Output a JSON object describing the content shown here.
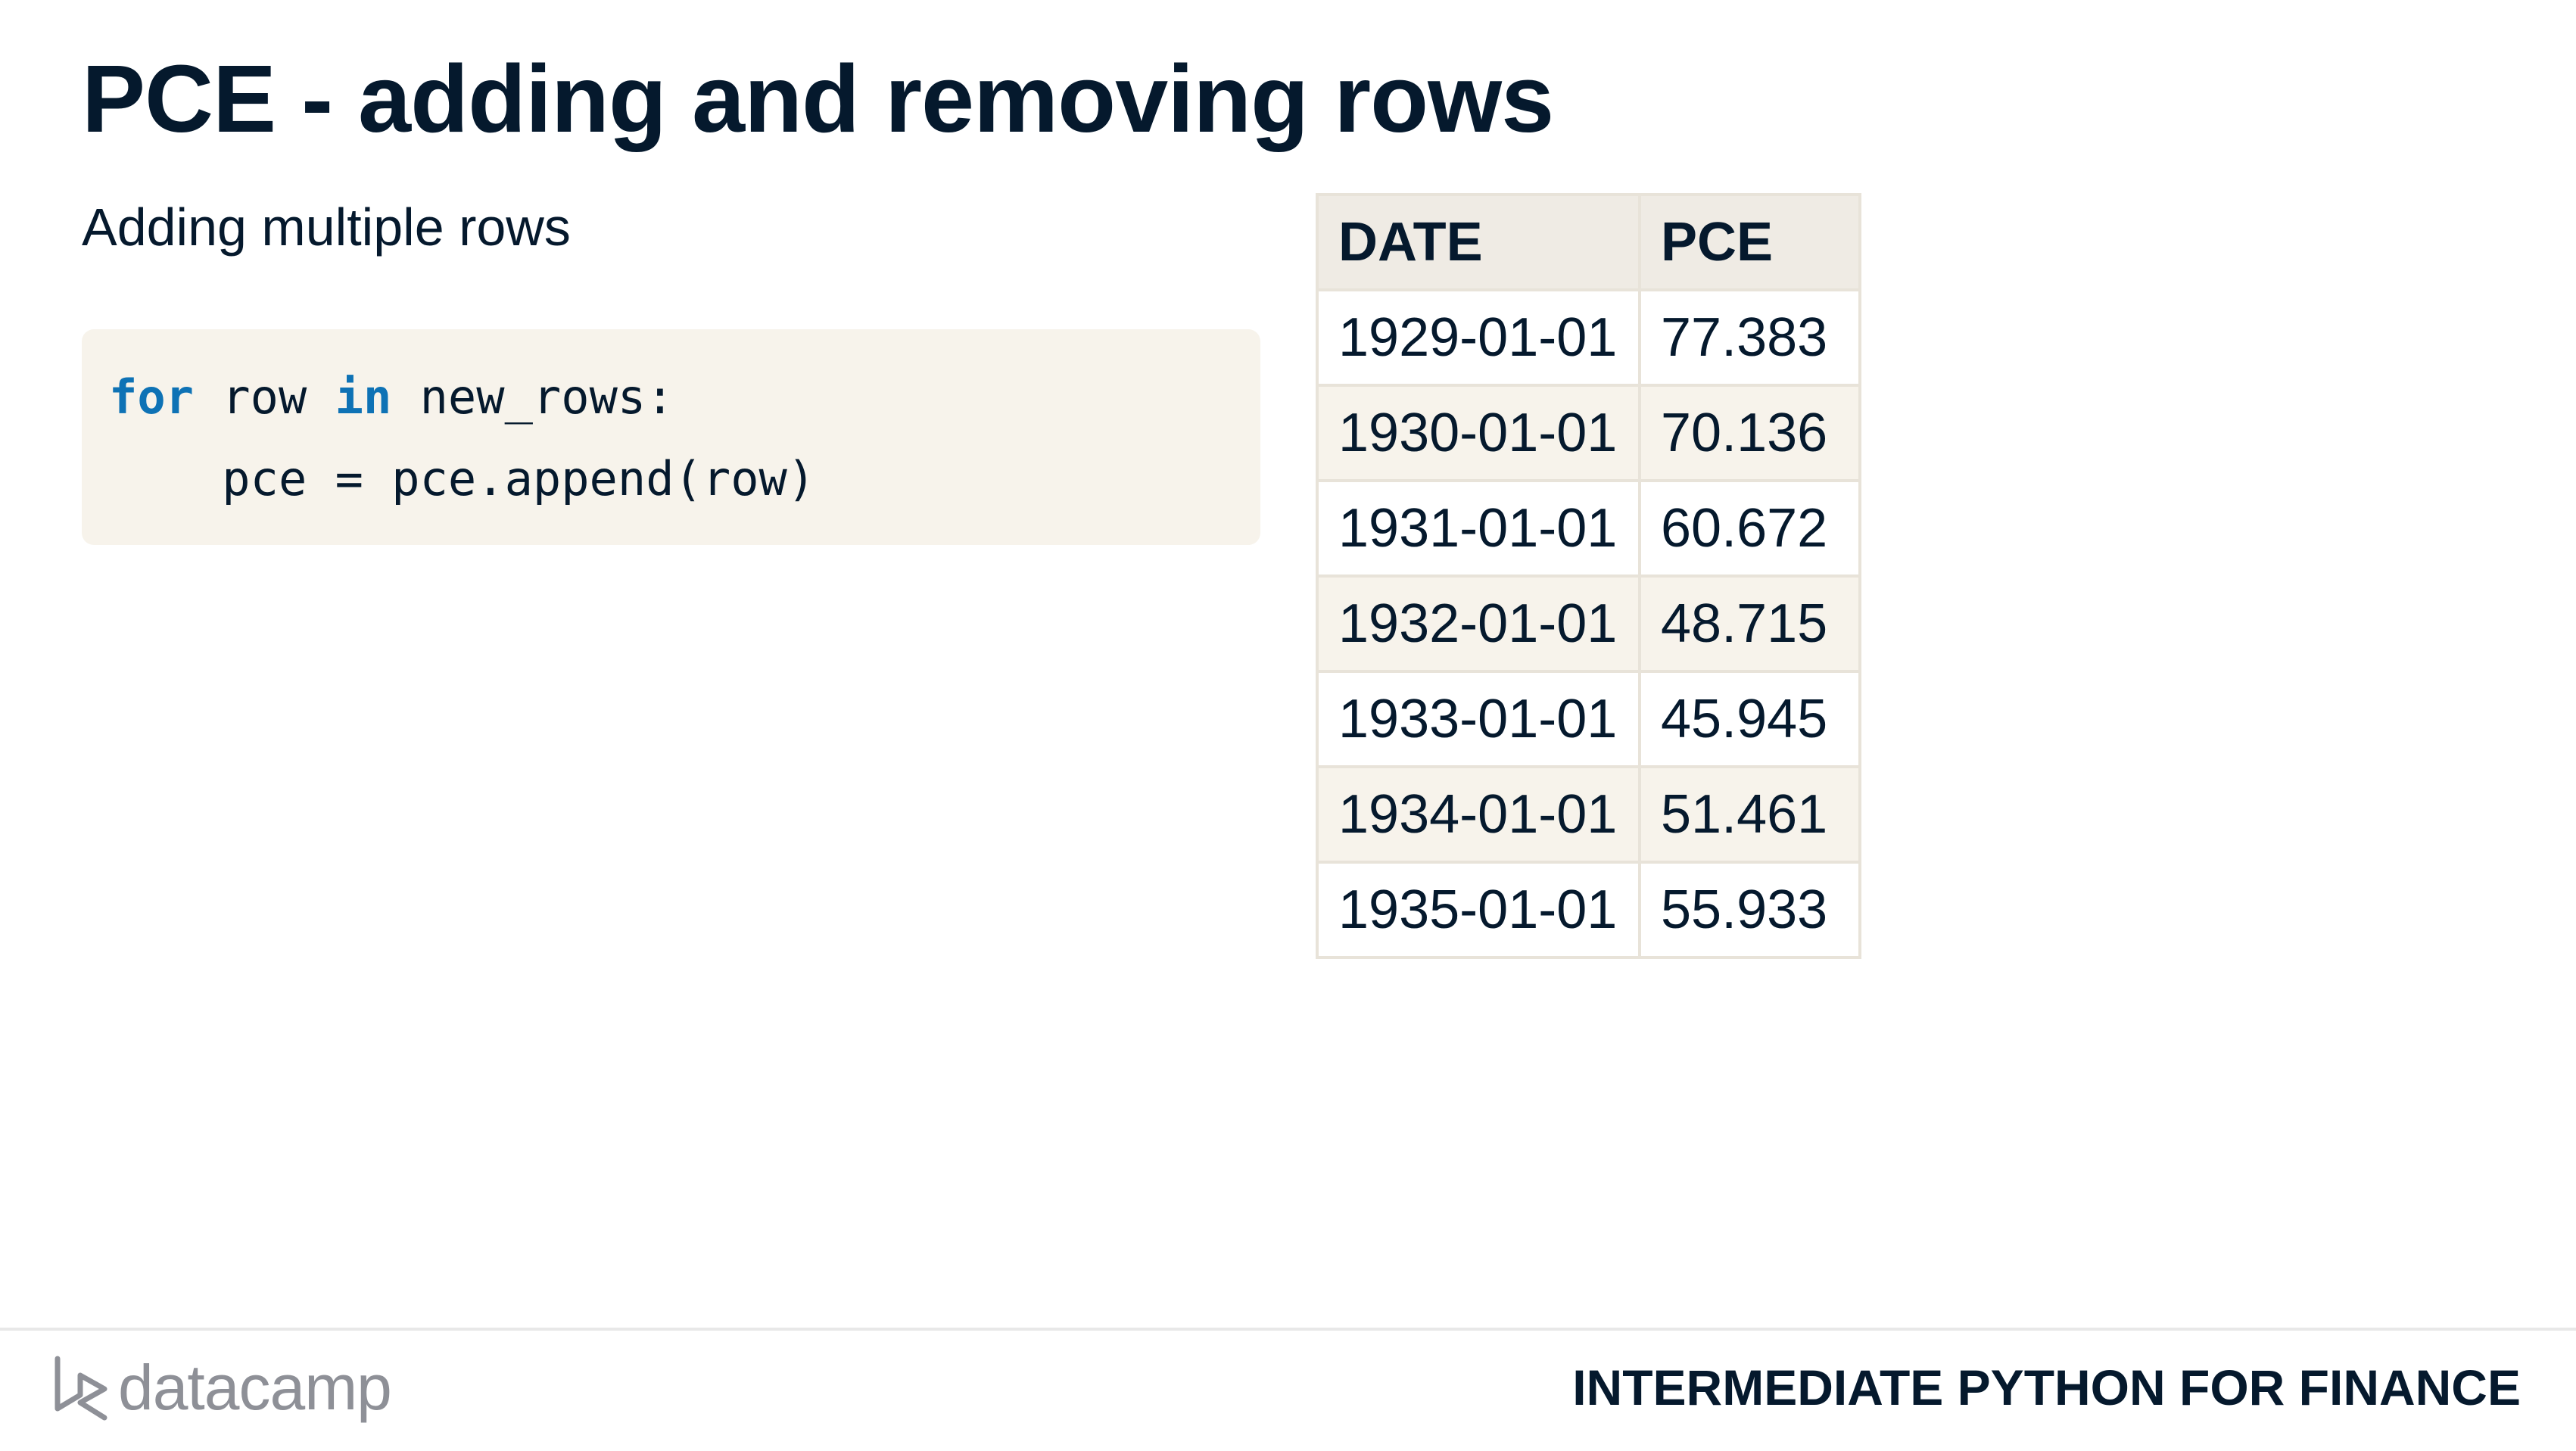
{
  "slide": {
    "title": "PCE - adding and removing rows",
    "subtitle": "Adding multiple rows"
  },
  "code": {
    "line1": {
      "kw_for": "for",
      "mid1": " row ",
      "kw_in": "in",
      "mid2": " new_rows:"
    },
    "line2": "    pce = pce.append(row)"
  },
  "table": {
    "headers": [
      "DATE",
      "PCE"
    ],
    "rows": [
      [
        "1929-01-01",
        "77.383"
      ],
      [
        "1930-01-01",
        "70.136"
      ],
      [
        "1931-01-01",
        "60.672"
      ],
      [
        "1932-01-01",
        "48.715"
      ],
      [
        "1933-01-01",
        "45.945"
      ],
      [
        "1934-01-01",
        "51.461"
      ],
      [
        "1935-01-01",
        "55.933"
      ]
    ]
  },
  "footer": {
    "logo_text": "datacamp",
    "course_title": "INTERMEDIATE PYTHON FOR FINANCE"
  },
  "colors": {
    "text": "#05192d",
    "keyword": "#0e72b5",
    "code_background": "#f7f3eb",
    "table_header_background": "#efebe4",
    "logo_gray": "#8e9097"
  },
  "icons": {
    "logo": "datacamp-logo-icon"
  }
}
